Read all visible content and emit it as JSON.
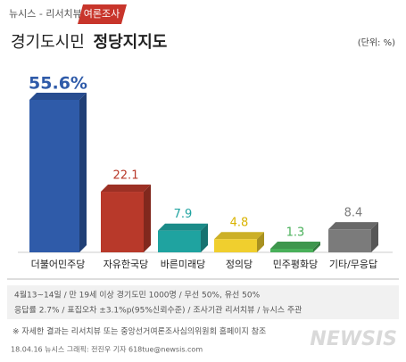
{
  "chart_data": {
    "type": "bar3d",
    "source_tag": "뉴시스 - 리서치뷰",
    "topic_tag": "여론조사",
    "title_prefix": "경기도시민",
    "title_bold": "정당지지도",
    "unit": "(단위: %)",
    "categories": [
      "더불어민주당",
      "자유한국당",
      "바른미래당",
      "정의당",
      "민주평화당",
      "기타/무응답"
    ],
    "values": [
      55.6,
      22.1,
      7.9,
      4.8,
      1.3,
      8.4
    ],
    "value_labels": [
      "55.6%",
      "22.1",
      "7.9",
      "4.8",
      "1.3",
      "8.4"
    ],
    "colors": [
      "#2f5ba9",
      "#b8392a",
      "#1fa3a0",
      "#f0cf2e",
      "#49b05a",
      "#7b7b7b"
    ],
    "notes": [
      "4월13~14일 / 만 19세 이상 경기도민 1000명 / 무선 50%, 유선 50%",
      "응답률 2.7% / 표집오차 ±3.1%p(95%신뢰수준) / 조사기관 리서치뷰 / 뉴시스 주관"
    ],
    "footnote": "※ 자세한 결과는 리서치뷰 또는 중앙선거여론조사심의위원회 홈페이지 참조",
    "credit": "18.04.16 뉴시스 그래픽: 전진우 기자 618tue@newsis.com",
    "watermark": "NEWSIS"
  }
}
